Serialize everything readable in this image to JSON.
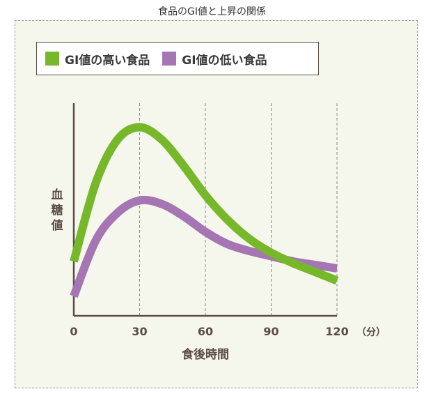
{
  "page_title": "食品のGI値と上昇の関係",
  "colors": {
    "high_gi": "#76b82a",
    "low_gi": "#a676b4",
    "axis": "#5a4c44"
  },
  "chart_data": {
    "type": "line",
    "title": "食品のGI値と上昇の関係",
    "xlabel": "食後時間",
    "ylabel": "血糖値",
    "x_unit": "（分）",
    "xlim": [
      0,
      120
    ],
    "x_ticks": [
      "0",
      "30",
      "60",
      "90",
      "120"
    ],
    "grid": "vertical dashed lines at 30, 60, 90, 120",
    "legend": "top-left",
    "series": [
      {
        "name": "GI値の高い食品",
        "color": "#76b82a",
        "x": [
          0,
          10,
          20,
          30,
          40,
          50,
          60,
          70,
          80,
          90,
          100,
          110,
          120
        ],
        "y": [
          0.2,
          0.65,
          0.9,
          0.97,
          0.9,
          0.75,
          0.58,
          0.44,
          0.33,
          0.25,
          0.19,
          0.14,
          0.09
        ]
      },
      {
        "name": "GI値の低い食品",
        "color": "#a676b4",
        "x": [
          0,
          10,
          20,
          30,
          40,
          50,
          60,
          70,
          80,
          90,
          100,
          110,
          120
        ],
        "y": [
          0.0,
          0.32,
          0.48,
          0.55,
          0.53,
          0.46,
          0.37,
          0.3,
          0.26,
          0.23,
          0.2,
          0.18,
          0.16
        ]
      }
    ]
  }
}
